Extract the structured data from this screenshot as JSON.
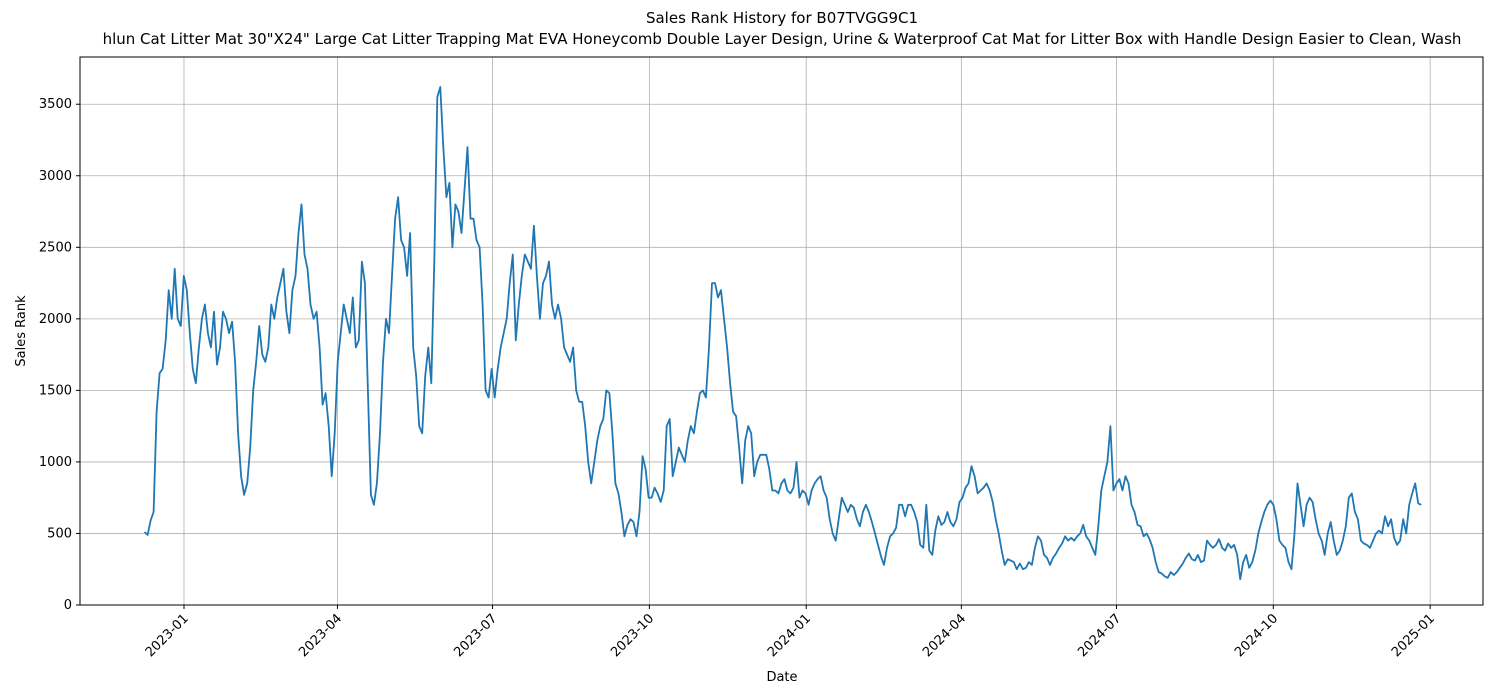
{
  "chart_data": {
    "type": "line",
    "title": "Sales Rank History for B07TVGG9C1",
    "subtitle": "hlun Cat Litter Mat 30\"X24\" Large Cat Litter Trapping Mat EVA Honeycomb Double Layer Design, Urine & Waterproof Cat Mat for Litter Box with Handle Design Easier to Clean, Wash",
    "x_label": "Date",
    "y_label": "Sales Rank",
    "xlim": [
      "2022-11",
      "2025-02"
    ],
    "xticks": [
      "2023-01",
      "2023-04",
      "2023-07",
      "2023-10",
      "2024-01",
      "2024-04",
      "2024-07",
      "2024-10",
      "2025-01"
    ],
    "ylim": [
      0,
      3830
    ],
    "yticks": [
      0,
      500,
      1000,
      1500,
      2000,
      2500,
      3000,
      3500
    ],
    "grid": true,
    "color": "#1f77b4",
    "values": [
      510,
      490,
      590,
      650,
      1350,
      1620,
      1650,
      1850,
      2200,
      2000,
      2350,
      2000,
      1950,
      2300,
      2200,
      1900,
      1650,
      1550,
      1800,
      2000,
      2100,
      1900,
      1800,
      2050,
      1680,
      1800,
      2050,
      2000,
      1900,
      1980,
      1700,
      1200,
      900,
      770,
      850,
      1100,
      1500,
      1700,
      1950,
      1750,
      1700,
      1800,
      2100,
      2000,
      2150,
      2250,
      2350,
      2050,
      1900,
      2200,
      2300,
      2600,
      2800,
      2450,
      2350,
      2100,
      2000,
      2050,
      1800,
      1400,
      1480,
      1250,
      900,
      1200,
      1700,
      1900,
      2100,
      2000,
      1900,
      2150,
      1800,
      1850,
      2400,
      2250,
      1500,
      770,
      700,
      850,
      1200,
      1700,
      2000,
      1900,
      2300,
      2700,
      2850,
      2550,
      2500,
      2300,
      2600,
      1800,
      1600,
      1250,
      1200,
      1600,
      1800,
      1550,
      2400,
      3550,
      3620,
      3200,
      2850,
      2950,
      2500,
      2800,
      2750,
      2600,
      2900,
      3200,
      2700,
      2700,
      2550,
      2500,
      2100,
      1500,
      1450,
      1650,
      1450,
      1650,
      1800,
      1900,
      2000,
      2250,
      2450,
      1850,
      2100,
      2300,
      2450,
      2400,
      2350,
      2650,
      2300,
      2000,
      2250,
      2300,
      2400,
      2100,
      2000,
      2100,
      2000,
      1800,
      1750,
      1700,
      1800,
      1500,
      1420,
      1420,
      1250,
      1000,
      850,
      1000,
      1150,
      1250,
      1300,
      1500,
      1480,
      1200,
      850,
      780,
      650,
      480,
      560,
      600,
      580,
      480,
      650,
      1040,
      950,
      750,
      750,
      820,
      780,
      720,
      800,
      1250,
      1300,
      900,
      1000,
      1100,
      1050,
      1000,
      1150,
      1250,
      1200,
      1350,
      1480,
      1500,
      1450,
      1800,
      2250,
      2250,
      2150,
      2200,
      2000,
      1800,
      1550,
      1350,
      1320,
      1100,
      850,
      1150,
      1250,
      1200,
      900,
      1000,
      1050,
      1050,
      1050,
      950,
      800,
      800,
      780,
      850,
      880,
      800,
      780,
      820,
      1000,
      750,
      800,
      780,
      700,
      800,
      850,
      880,
      900,
      800,
      750,
      600,
      500,
      450,
      600,
      750,
      700,
      650,
      700,
      680,
      600,
      550,
      650,
      700,
      650,
      580,
      500,
      420,
      340,
      280,
      400,
      480,
      500,
      540,
      700,
      700,
      620,
      700,
      700,
      650,
      580,
      420,
      400,
      700,
      380,
      350,
      520,
      620,
      560,
      580,
      650,
      580,
      550,
      600,
      720,
      750,
      820,
      850,
      970,
      900,
      780,
      800,
      820,
      850,
      800,
      720,
      600,
      500,
      380,
      280,
      320,
      310,
      300,
      250,
      290,
      250,
      260,
      300,
      280,
      400,
      480,
      450,
      350,
      330,
      280,
      330,
      360,
      400,
      430,
      480,
      450,
      470,
      450,
      480,
      500,
      560,
      480,
      450,
      400,
      350,
      550,
      800,
      900,
      1000,
      1250,
      800,
      850,
      880,
      800,
      900,
      850,
      700,
      650,
      560,
      550,
      480,
      500,
      460,
      400,
      300,
      230,
      220,
      200,
      190,
      230,
      210,
      230,
      260,
      290,
      330,
      360,
      320,
      310,
      350,
      300,
      310,
      450,
      420,
      400,
      420,
      460,
      400,
      380,
      430,
      400,
      420,
      350,
      180,
      300,
      350,
      260,
      300,
      380,
      500,
      580,
      650,
      700,
      730,
      700,
      600,
      450,
      420,
      400,
      300,
      250,
      500,
      850,
      700,
      550,
      700,
      750,
      720,
      600,
      500,
      450,
      350,
      500,
      580,
      450,
      350,
      380,
      450,
      550,
      750,
      780,
      650,
      600,
      450,
      430,
      420,
      400,
      450,
      500,
      520,
      500,
      620,
      550,
      600,
      470,
      420,
      450,
      600,
      500,
      700,
      780,
      850,
      710,
      700
    ]
  }
}
